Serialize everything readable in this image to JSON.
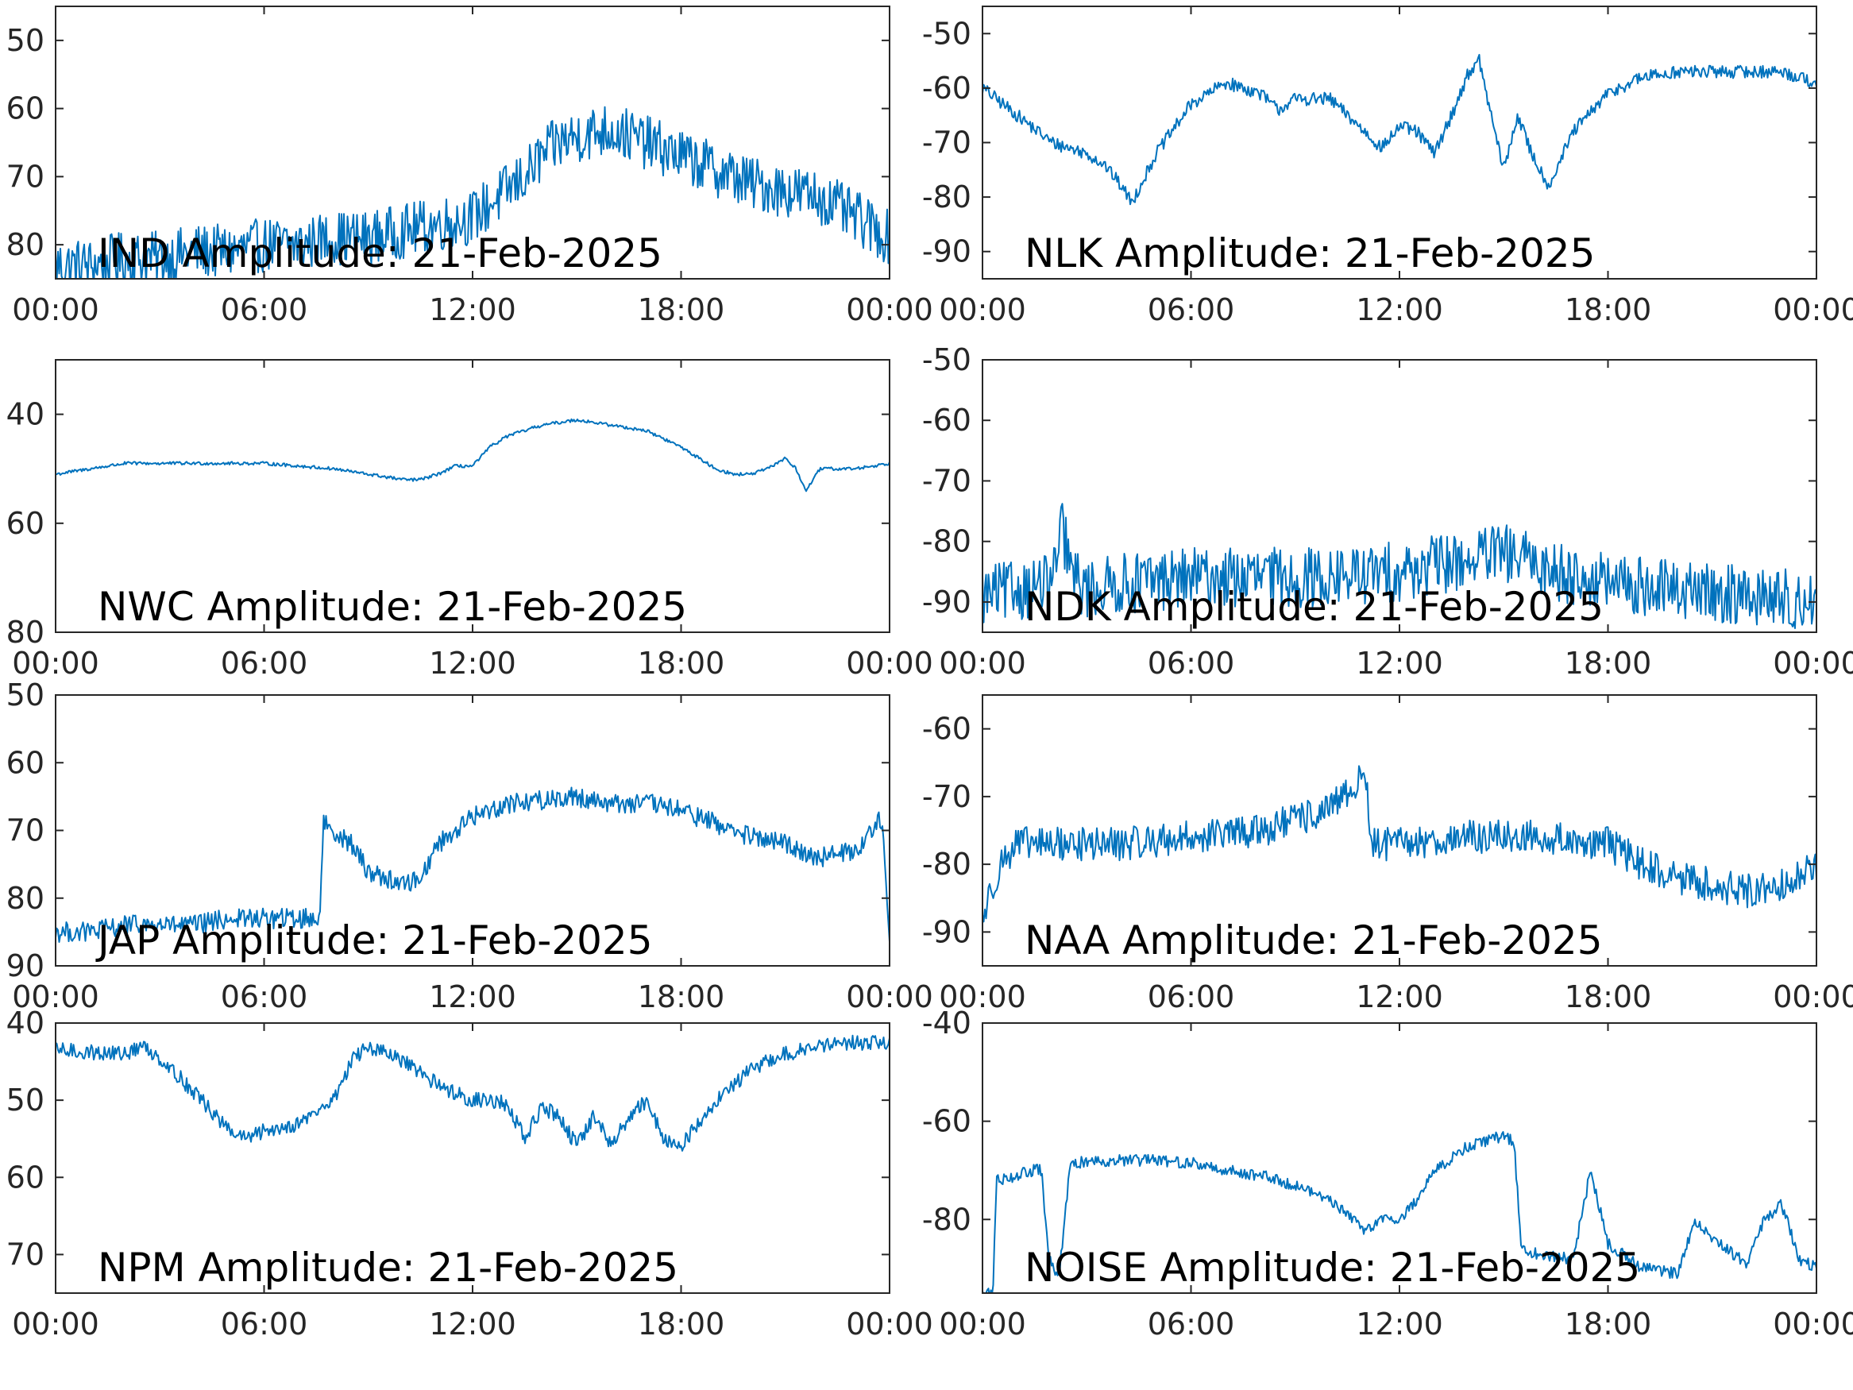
{
  "figure": {
    "line_color": "#0072BD",
    "axis_color": "#262626",
    "background": "#ffffff"
  },
  "chart_data": [
    {
      "type": "line",
      "title": "IND Amplitude: 21-Feb-2025",
      "x_ticks": [
        "00:00",
        "06:00",
        "12:00",
        "18:00",
        "00:00"
      ],
      "xlim": [
        "00:00",
        "24:00"
      ],
      "ylim": [
        -85,
        -45
      ],
      "y_ticks": [
        -50,
        -60,
        -70,
        -80
      ],
      "y_tick_labels": [
        "50",
        "60",
        "70",
        "80"
      ],
      "noise_amplitude": 4,
      "series": [
        {
          "x": [
            0,
            1,
            2,
            3,
            4,
            5,
            6,
            7,
            8,
            9,
            10,
            11,
            12,
            12.5,
            13,
            13.5,
            14,
            14.5,
            15,
            16,
            17,
            18,
            19,
            20,
            21,
            22,
            23,
            24
          ],
          "y": [
            -83,
            -83,
            -82,
            -82,
            -81,
            -81,
            -80,
            -80,
            -79,
            -79,
            -78,
            -77,
            -76,
            -74,
            -72,
            -70,
            -67,
            -65,
            -64,
            -63,
            -65,
            -67,
            -69,
            -71,
            -72,
            -73,
            -76,
            -79
          ]
        }
      ]
    },
    {
      "type": "line",
      "title": "NLK Amplitude: 21-Feb-2025",
      "x_ticks": [
        "00:00",
        "06:00",
        "12:00",
        "18:00",
        "00:00"
      ],
      "xlim": [
        "00:00",
        "24:00"
      ],
      "ylim": [
        -95,
        -45
      ],
      "y_ticks": [
        -50,
        -60,
        -70,
        -80,
        -90
      ],
      "y_tick_labels": [
        "-50",
        "-60",
        "-70",
        "-80",
        "-90"
      ],
      "noise_amplitude": 1.2,
      "series": [
        {
          "x": [
            0,
            1,
            2,
            3,
            3.5,
            4,
            4.3,
            5,
            6,
            7,
            8,
            8.5,
            9,
            10,
            11,
            11.5,
            12,
            12.5,
            13,
            13.5,
            14,
            14.3,
            14.6,
            15,
            15.4,
            15.8,
            16.3,
            17,
            18,
            19,
            20,
            21,
            22,
            23,
            24
          ],
          "y": [
            -60,
            -65,
            -70,
            -72,
            -74,
            -78,
            -81,
            -72,
            -63,
            -59,
            -61,
            -64,
            -62,
            -62,
            -68,
            -71,
            -67,
            -68,
            -72,
            -65,
            -57,
            -55,
            -64,
            -75,
            -65,
            -72,
            -78,
            -68,
            -61,
            -58,
            -57,
            -57,
            -57,
            -57,
            -59
          ]
        }
      ]
    },
    {
      "type": "line",
      "title": "NWC Amplitude: 21-Feb-2025",
      "x_ticks": [
        "00:00",
        "06:00",
        "12:00",
        "18:00",
        "00:00"
      ],
      "xlim": [
        "00:00",
        "24:00"
      ],
      "ylim": [
        -80,
        -30
      ],
      "y_ticks": [
        -40,
        -60,
        -80
      ],
      "y_tick_labels": [
        "40",
        "60",
        "80"
      ],
      "noise_amplitude": 0.3,
      "series": [
        {
          "x": [
            0,
            1,
            2,
            3,
            4,
            5,
            6,
            7,
            8,
            9,
            10,
            10.5,
            11,
            11.5,
            12,
            12.5,
            13,
            14,
            15,
            16,
            17,
            18,
            19,
            19.5,
            20,
            20.5,
            21,
            21.3,
            21.6,
            22,
            23,
            24
          ],
          "y": [
            -51,
            -50,
            -49,
            -49,
            -49,
            -49,
            -49,
            -49.5,
            -50,
            -51,
            -52,
            -52,
            -51,
            -49.5,
            -49.5,
            -46,
            -44,
            -42,
            -41,
            -42,
            -43,
            -46,
            -50,
            -51,
            -51,
            -50,
            -48,
            -50,
            -54,
            -50,
            -50,
            -49
          ]
        }
      ]
    },
    {
      "type": "line",
      "title": "NDK Amplitude: 21-Feb-2025",
      "x_ticks": [
        "00:00",
        "06:00",
        "12:00",
        "18:00",
        "00:00"
      ],
      "xlim": [
        "00:00",
        "24:00"
      ],
      "ylim": [
        -95,
        -50
      ],
      "y_ticks": [
        -50,
        -60,
        -70,
        -80,
        -90
      ],
      "y_tick_labels": [
        "-50",
        "-60",
        "-70",
        "-80",
        "-90"
      ],
      "noise_amplitude": 5,
      "series": [
        {
          "x": [
            0,
            1,
            2,
            2.3,
            2.6,
            3,
            4,
            6,
            8,
            10,
            12,
            14,
            15,
            16,
            18,
            20,
            22,
            24
          ],
          "y": [
            -89,
            -88,
            -87,
            -78,
            -86,
            -88,
            -87,
            -86,
            -86,
            -86,
            -85,
            -83,
            -82,
            -84,
            -87,
            -88,
            -89,
            -90
          ]
        }
      ]
    },
    {
      "type": "line",
      "title": "JAP Amplitude: 21-Feb-2025",
      "x_ticks": [
        "00:00",
        "06:00",
        "12:00",
        "18:00",
        "00:00"
      ],
      "xlim": [
        "00:00",
        "24:00"
      ],
      "ylim": [
        -90,
        -50
      ],
      "y_ticks": [
        -50,
        -60,
        -70,
        -80,
        -90
      ],
      "y_tick_labels": [
        "50",
        "60",
        "70",
        "80",
        "90"
      ],
      "noise_amplitude": 1.5,
      "series": [
        {
          "x": [
            0,
            1,
            2,
            3,
            4,
            5,
            6,
            7,
            7.6,
            7.7,
            8,
            8.5,
            9,
            10,
            10.5,
            11,
            12,
            13,
            14,
            15,
            16,
            17,
            18,
            19,
            20,
            21,
            22,
            23,
            23.5,
            23.8,
            24
          ],
          "y": [
            -85,
            -85,
            -84,
            -84,
            -84,
            -83,
            -83,
            -83,
            -83,
            -69,
            -70,
            -72,
            -76,
            -78,
            -77,
            -72,
            -68,
            -66,
            -65.5,
            -65,
            -66,
            -66,
            -67,
            -69,
            -71,
            -72,
            -74,
            -73,
            -70,
            -68,
            -86
          ]
        }
      ]
    },
    {
      "type": "line",
      "title": "NAA Amplitude: 21-Feb-2025",
      "x_ticks": [
        "00:00",
        "06:00",
        "12:00",
        "18:00",
        "00:00"
      ],
      "xlim": [
        "00:00",
        "24:00"
      ],
      "ylim": [
        -95,
        -55
      ],
      "y_ticks": [
        -60,
        -70,
        -80,
        -90
      ],
      "y_tick_labels": [
        "-60",
        "-70",
        "-80",
        "-90"
      ],
      "noise_amplitude": 2.5,
      "series": [
        {
          "x": [
            0,
            0.5,
            1,
            2,
            4,
            6,
            8,
            10,
            10.8,
            11,
            11.2,
            12,
            14,
            16,
            18,
            19,
            20,
            22,
            23,
            24
          ],
          "y": [
            -88,
            -80,
            -77,
            -77,
            -77,
            -76,
            -75,
            -72,
            -68,
            -66,
            -77,
            -77,
            -76,
            -76,
            -77,
            -80,
            -82,
            -84,
            -83,
            -80
          ]
        }
      ]
    },
    {
      "type": "line",
      "title": "NPM Amplitude: 21-Feb-2025",
      "x_ticks": [
        "00:00",
        "06:00",
        "12:00",
        "18:00",
        "00:00"
      ],
      "xlim": [
        "00:00",
        "24:00"
      ],
      "ylim": [
        -75,
        -40
      ],
      "y_ticks": [
        -40,
        -50,
        -60,
        -70
      ],
      "y_tick_labels": [
        "40",
        "50",
        "60",
        "70"
      ],
      "noise_amplitude": 1,
      "series": [
        {
          "x": [
            0,
            1,
            2,
            2.5,
            3,
            4,
            5,
            5.5,
            6,
            7,
            8,
            8.5,
            9,
            10,
            11,
            12,
            12.5,
            13,
            13.5,
            14,
            14.5,
            15,
            15.5,
            16,
            16.5,
            17,
            17.5,
            18,
            19,
            20,
            21,
            22,
            23,
            24
          ],
          "y": [
            -43.5,
            -43.8,
            -44,
            -43,
            -44.5,
            -49,
            -54,
            -55,
            -54,
            -53,
            -50,
            -45,
            -43,
            -45,
            -48,
            -50,
            -50,
            -50.5,
            -55,
            -51,
            -52,
            -56,
            -52,
            -56,
            -52,
            -50,
            -55,
            -56,
            -50,
            -46,
            -44,
            -43,
            -42.5,
            -42.5
          ]
        }
      ]
    },
    {
      "type": "line",
      "title": "NOISE Amplitude: 21-Feb-2025",
      "x_ticks": [
        "00:00",
        "06:00",
        "12:00",
        "18:00",
        "00:00"
      ],
      "xlim": [
        "00:00",
        "24:00"
      ],
      "ylim": [
        -95,
        -40
      ],
      "y_ticks": [
        -40,
        -60,
        -80
      ],
      "y_tick_labels": [
        "-40",
        "-60",
        "-80"
      ],
      "noise_amplitude": 1.2,
      "series": [
        {
          "x": [
            0,
            0.3,
            0.4,
            1,
            1.5,
            1.7,
            1.9,
            2.2,
            2.5,
            2.6,
            3,
            4,
            5,
            6,
            7,
            8,
            9,
            10,
            10.5,
            11,
            11.5,
            12,
            12.5,
            13,
            14,
            15,
            15.3,
            15.5,
            16,
            17,
            17.5,
            18,
            19,
            20,
            20.5,
            21,
            22,
            22.5,
            23,
            23.5,
            24
          ],
          "y": [
            -95,
            -95,
            -72,
            -71,
            -70,
            -70,
            -88,
            -92,
            -70,
            -69,
            -68,
            -68,
            -68,
            -68.5,
            -70,
            -71,
            -73,
            -76,
            -79,
            -82,
            -80,
            -80,
            -76,
            -70,
            -65,
            -63,
            -64,
            -86,
            -87,
            -88,
            -70,
            -85,
            -90,
            -91,
            -80,
            -84,
            -89,
            -80,
            -77,
            -88,
            -90
          ]
        }
      ]
    }
  ]
}
